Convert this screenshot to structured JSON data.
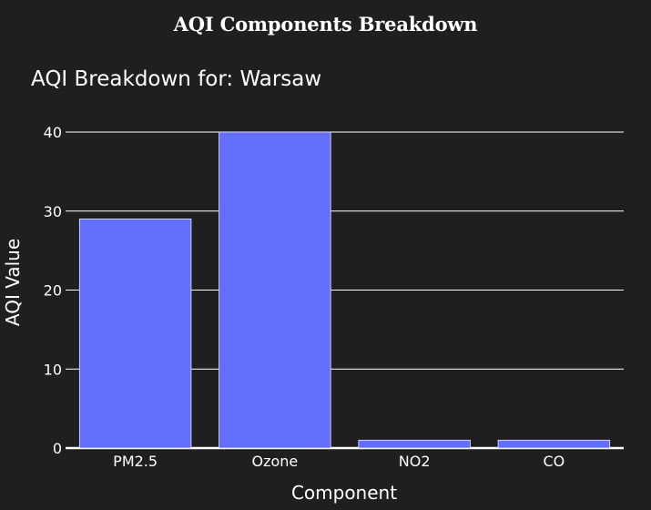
{
  "page": {
    "heading": "AQI Components Breakdown"
  },
  "chart_data": {
    "type": "bar",
    "title": "AQI Breakdown for: Warsaw",
    "xlabel": "Component",
    "ylabel": "AQI Value",
    "categories": [
      "PM2.5",
      "Ozone",
      "NO2",
      "CO"
    ],
    "values": [
      29,
      40,
      1,
      1
    ],
    "ylim": [
      0,
      40
    ],
    "yticks": [
      0,
      10,
      20,
      30,
      40
    ],
    "grid": true,
    "legend": "none",
    "colors": {
      "background": "#1f1f1f",
      "bar": "#636efa",
      "bar_outline": "#e8e8ff",
      "grid": "#ffffff",
      "text": "#ffffff"
    }
  }
}
